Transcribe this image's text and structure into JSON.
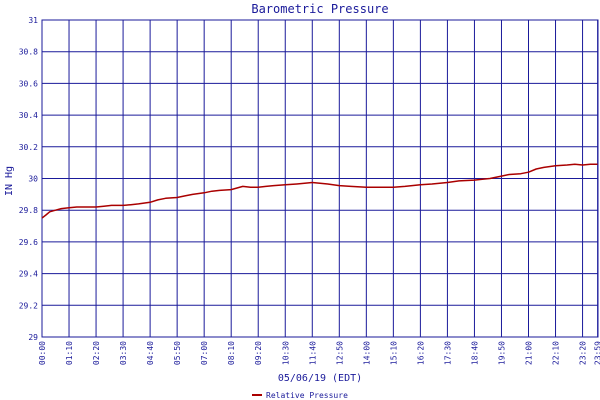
{
  "chart_data": {
    "type": "line",
    "title": "Barometric Pressure",
    "xlabel": "05/06/19 (EDT)",
    "ylabel": "IN Hg",
    "ylim": [
      29,
      31
    ],
    "yticks": [
      29,
      29.2,
      29.4,
      29.6,
      29.8,
      30,
      30.2,
      30.4,
      30.6,
      30.8,
      31
    ],
    "ytick_labels": [
      "29",
      "29.2",
      "29.4",
      "29.6",
      "29.8",
      "30",
      "30.2",
      "30.4",
      "30.6",
      "30.8",
      "31"
    ],
    "xlim_minutes": [
      0,
      1440
    ],
    "xticks": [
      "00:00",
      "01:10",
      "02:20",
      "03:30",
      "04:40",
      "05:50",
      "07:00",
      "08:10",
      "09:20",
      "10:30",
      "11:40",
      "12:50",
      "14:00",
      "15:10",
      "16:20",
      "17:30",
      "18:40",
      "19:50",
      "21:00",
      "22:10",
      "23:20",
      "23:59"
    ],
    "grid": true,
    "legend_position": "bottom-center",
    "series": [
      {
        "name": "Relative Pressure",
        "color": "#aa0000",
        "x": [
          "00:00",
          "00:10",
          "00:20",
          "00:35",
          "00:50",
          "01:10",
          "01:30",
          "01:50",
          "02:20",
          "02:40",
          "03:00",
          "03:30",
          "03:50",
          "04:10",
          "04:40",
          "05:00",
          "05:20",
          "05:50",
          "06:10",
          "06:30",
          "07:00",
          "07:20",
          "07:40",
          "08:10",
          "08:40",
          "09:00",
          "09:20",
          "09:40",
          "10:00",
          "10:30",
          "11:00",
          "11:20",
          "11:40",
          "12:00",
          "12:20",
          "12:50",
          "13:20",
          "14:00",
          "14:30",
          "15:10",
          "15:40",
          "16:20",
          "16:50",
          "17:30",
          "18:00",
          "18:40",
          "19:00",
          "19:20",
          "19:50",
          "20:10",
          "20:40",
          "21:00",
          "21:20",
          "21:40",
          "22:10",
          "22:40",
          "23:00",
          "23:20",
          "23:40",
          "23:59"
        ],
        "values": [
          29.75,
          29.77,
          29.79,
          29.8,
          29.81,
          29.815,
          29.82,
          29.82,
          29.82,
          29.825,
          29.83,
          29.83,
          29.835,
          29.84,
          29.85,
          29.865,
          29.875,
          29.88,
          29.89,
          29.9,
          29.91,
          29.92,
          29.925,
          29.93,
          29.95,
          29.945,
          29.945,
          29.95,
          29.955,
          29.96,
          29.965,
          29.97,
          29.975,
          29.97,
          29.965,
          29.955,
          29.95,
          29.945,
          29.945,
          29.945,
          29.95,
          29.96,
          29.965,
          29.975,
          29.985,
          29.99,
          29.995,
          30.0,
          30.015,
          30.025,
          30.03,
          30.04,
          30.06,
          30.07,
          30.08,
          30.085,
          30.09,
          30.085,
          30.09,
          30.09
        ]
      }
    ]
  }
}
